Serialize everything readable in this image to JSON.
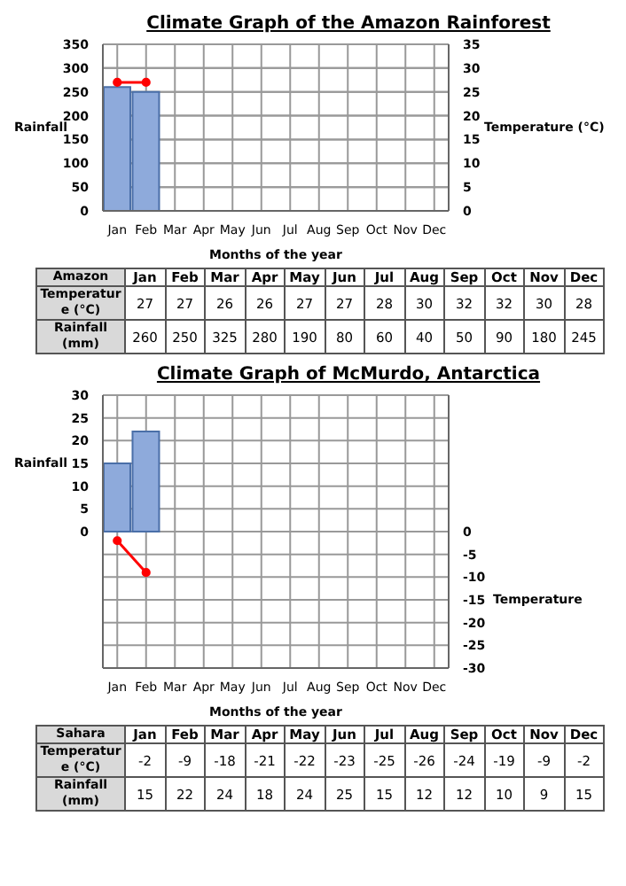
{
  "chart_data": [
    {
      "type": "bar",
      "title": "Climate Graph of the Amazon Rainforest",
      "xlabel": "Months of the year",
      "ylabel": "Rainfall",
      "y2label": "Temperature (°C)",
      "categories": [
        "Jan",
        "Feb",
        "Mar",
        "Apr",
        "May",
        "Jun",
        "Jul",
        "Aug",
        "Sep",
        "Oct",
        "Nov",
        "Dec"
      ],
      "series": [
        {
          "type": "bar",
          "color": "#8eaadb",
          "values": [
            260,
            250,
            null,
            null,
            null,
            null,
            null,
            null,
            null,
            null,
            null,
            null
          ]
        },
        {
          "type": "line",
          "axis": "y2",
          "color": "#ff0000",
          "values": [
            27,
            27,
            null,
            null,
            null,
            null,
            null,
            null,
            null,
            null,
            null,
            null
          ]
        }
      ],
      "ylim": [
        0,
        350
      ],
      "yticks": [
        0,
        50,
        100,
        150,
        200,
        250,
        300,
        350
      ],
      "y2lim": [
        0,
        35
      ],
      "y2ticks": [
        0,
        5,
        10,
        15,
        20,
        25,
        30,
        35
      ],
      "grid": true,
      "marker": "circle"
    },
    {
      "type": "other",
      "title": "Amazon",
      "categories": [
        "Jan",
        "Feb",
        "Mar",
        "Apr",
        "May",
        "Jun",
        "Jul",
        "Aug",
        "Sep",
        "Oct",
        "Nov",
        "Dec"
      ],
      "series": [
        {
          "name": "Temperature (°C)",
          "values": [
            27,
            27,
            26,
            26,
            27,
            27,
            28,
            30,
            32,
            32,
            30,
            28
          ]
        },
        {
          "name": "Rainfall (mm)",
          "values": [
            260,
            250,
            325,
            280,
            190,
            80,
            60,
            40,
            50,
            90,
            180,
            245
          ]
        }
      ],
      "data_labels": true
    },
    {
      "type": "bar",
      "title": "Climate Graph of McMurdo, Antarctica",
      "xlabel": "Months of the year",
      "ylabel": "Rainfall",
      "y2label": "Temperature",
      "categories": [
        "Jan",
        "Feb",
        "Mar",
        "Apr",
        "May",
        "Jun",
        "Jul",
        "Aug",
        "Sep",
        "Oct",
        "Nov",
        "Dec"
      ],
      "series": [
        {
          "type": "bar",
          "color": "#8eaadb",
          "values": [
            15,
            22,
            null,
            null,
            null,
            null,
            null,
            null,
            null,
            null,
            null,
            null
          ]
        },
        {
          "type": "line",
          "axis": "y2",
          "color": "#ff0000",
          "values": [
            -2,
            -9,
            null,
            null,
            null,
            null,
            null,
            null,
            null,
            null,
            null,
            null
          ]
        }
      ],
      "ylim": [
        -30,
        30
      ],
      "yticks": [
        0,
        5,
        10,
        15,
        20,
        25,
        30
      ],
      "y2lim": [
        -30,
        30
      ],
      "y2ticks": [
        0,
        -5,
        -10,
        -15,
        -20,
        -25,
        -30
      ],
      "grid": true,
      "marker": "circle"
    },
    {
      "type": "other",
      "title": "Sahara",
      "categories": [
        "Jan",
        "Feb",
        "Mar",
        "Apr",
        "May",
        "Jun",
        "Jul",
        "Aug",
        "Sep",
        "Oct",
        "Nov",
        "Dec"
      ],
      "series": [
        {
          "name": "Temperature (°C)",
          "values": [
            -2,
            -9,
            -18,
            -21,
            -22,
            -23,
            -25,
            -26,
            -24,
            -19,
            -9,
            -2
          ]
        },
        {
          "name": "Rainfall (mm)",
          "values": [
            15,
            22,
            24,
            18,
            24,
            25,
            15,
            12,
            12,
            10,
            9,
            15
          ]
        }
      ],
      "data_labels": true
    }
  ]
}
